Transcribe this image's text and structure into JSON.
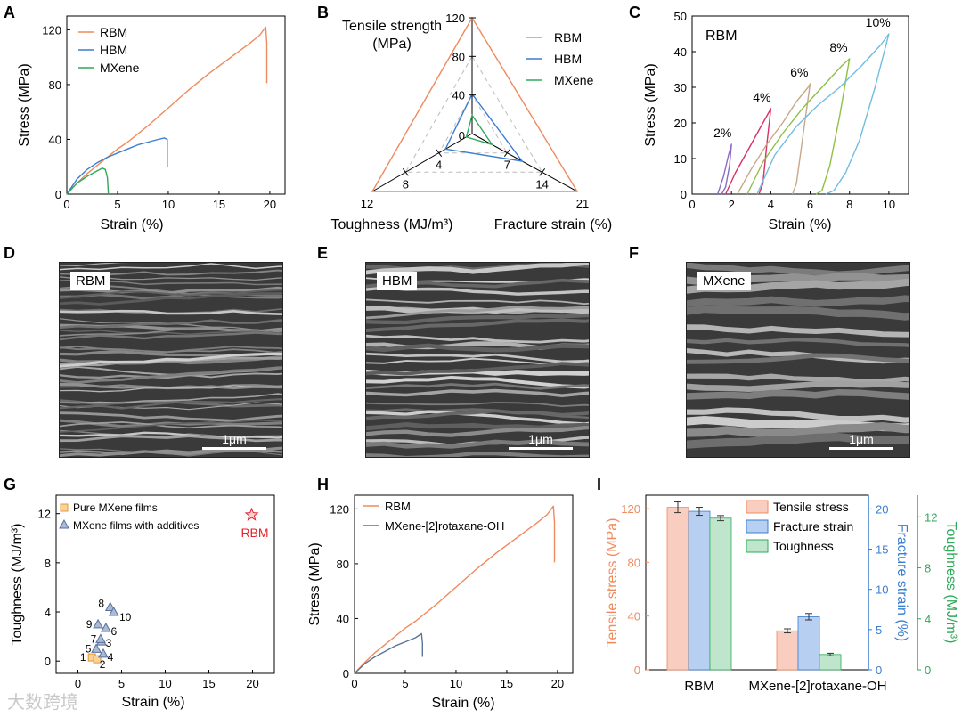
{
  "panels": {
    "A": {
      "letter": "A",
      "xlabel": "Strain (%)",
      "ylabel": "Stress (MPa)",
      "xticks": [
        "0",
        "5",
        "10",
        "15",
        "20"
      ],
      "yticks": [
        "0",
        "40",
        "80",
        "120"
      ],
      "legend": [
        "RBM",
        "HBM",
        "MXene"
      ]
    },
    "B": {
      "letter": "B",
      "axis_labels": {
        "top_1": "Tensile strength",
        "top_2": "(MPa)",
        "left": "Toughness (MJ/m³)",
        "right": "Fracture strain (%)"
      },
      "top_ticks": [
        "120",
        "80",
        "40",
        "0"
      ],
      "left_ticks": [
        "12",
        "8",
        "4"
      ],
      "right_ticks": [
        "21",
        "14",
        "7"
      ],
      "legend": [
        "RBM",
        "HBM",
        "MXene"
      ]
    },
    "C": {
      "letter": "C",
      "xlabel": "Strain (%)",
      "ylabel": "Stress (MPa)",
      "inset": "RBM",
      "xticks": [
        "0",
        "2",
        "4",
        "6",
        "8",
        "10"
      ],
      "yticks": [
        "0",
        "10",
        "20",
        "30",
        "40",
        "50"
      ],
      "cycle_labels": [
        "2%",
        "4%",
        "6%",
        "8%",
        "10%"
      ]
    },
    "D": {
      "letter": "D",
      "label": "RBM",
      "scale": "1μm"
    },
    "E": {
      "letter": "E",
      "label": "HBM",
      "scale": "1μm"
    },
    "F": {
      "letter": "F",
      "label": "MXene",
      "scale": "1μm"
    },
    "G": {
      "letter": "G",
      "xlabel": "Strain (%)",
      "ylabel": "Toughness (MJ/m³)",
      "xticks": [
        "0",
        "5",
        "10",
        "15",
        "20"
      ],
      "yticks": [
        "0",
        "4",
        "8",
        "12"
      ],
      "legend": [
        "Pure MXene films",
        "MXene films with additives"
      ],
      "star_label": "RBM"
    },
    "H": {
      "letter": "H",
      "xlabel": "Strain (%)",
      "ylabel": "Stress (MPa)",
      "xticks": [
        "0",
        "5",
        "10",
        "15",
        "20"
      ],
      "yticks": [
        "0",
        "40",
        "80",
        "120"
      ],
      "legend": [
        "RBM",
        "MXene-[2]rotaxane-OH"
      ]
    },
    "I": {
      "letter": "I",
      "ylabel_left": "Tensile stress (MPa)",
      "ylabel_mid": "Fracture strain (%)",
      "ylabel_right": "Toughness (MJ/m³)",
      "left_ticks": [
        "0",
        "40",
        "80",
        "120"
      ],
      "mid_ticks": [
        "0",
        "5",
        "10",
        "15",
        "20"
      ],
      "right_ticks": [
        "0",
        "4",
        "8",
        "12"
      ],
      "legend": [
        "Tensile stress",
        "Fracture strain",
        "Toughness"
      ],
      "categories": [
        "RBM",
        "MXene-[2]rotaxane-OH"
      ]
    }
  },
  "colors": {
    "rbm": "#f08a5d",
    "hbm": "#3a7dd1",
    "mxene": "#2eaa5a",
    "rotaxane": "#5b7594",
    "red": "#e0252f"
  },
  "watermark": "大数跨境",
  "chart_data": [
    {
      "panel": "A",
      "type": "line",
      "xlabel": "Strain (%)",
      "ylabel": "Stress (MPa)",
      "xlim": [
        0,
        21.5
      ],
      "ylim": [
        0,
        130
      ],
      "series": [
        {
          "name": "RBM",
          "x": [
            0,
            1,
            2,
            3,
            4,
            5,
            6,
            8,
            10,
            12,
            14,
            16,
            18,
            19,
            19.6,
            19.7,
            19.7
          ],
          "y": [
            0,
            8,
            15,
            21,
            27,
            33,
            38,
            50,
            63,
            76,
            88,
            99,
            110,
            116,
            122,
            110,
            81
          ]
        },
        {
          "name": "HBM",
          "x": [
            0,
            1,
            2,
            3,
            4,
            5,
            6,
            7,
            8,
            9,
            9.6,
            9.9,
            9.9
          ],
          "y": [
            0,
            11,
            18,
            23,
            27,
            30,
            33,
            36,
            38,
            40,
            41,
            40,
            20
          ]
        },
        {
          "name": "MXene",
          "x": [
            0,
            1,
            2,
            3,
            3.5,
            3.8,
            4.0,
            4.1
          ],
          "y": [
            0,
            8,
            13,
            17,
            19,
            18,
            12,
            0
          ]
        }
      ]
    },
    {
      "panel": "B",
      "type": "radar",
      "axes": [
        {
          "name": "Tensile strength (MPa)",
          "max": 120
        },
        {
          "name": "Toughness (MJ/m³)",
          "max": 12
        },
        {
          "name": "Fracture strain (%)",
          "max": 21
        }
      ],
      "series": [
        {
          "name": "RBM",
          "values": [
            120,
            12,
            21
          ]
        },
        {
          "name": "HBM",
          "values": [
            41,
            3.2,
            10
          ]
        },
        {
          "name": "MXene",
          "values": [
            19,
            0.7,
            4
          ]
        }
      ]
    },
    {
      "panel": "C",
      "type": "line",
      "xlabel": "Strain (%)",
      "ylabel": "Stress (MPa)",
      "xlim": [
        0,
        11
      ],
      "ylim": [
        0,
        50
      ],
      "series": [
        {
          "name": "2%",
          "color": "#8a6cc0",
          "x": [
            1.3,
            1.6,
            1.85,
            2.0,
            1.9,
            1.7,
            1.5
          ],
          "y": [
            0,
            5,
            11,
            14,
            8,
            2,
            0
          ]
        },
        {
          "name": "4%",
          "color": "#d8306a",
          "x": [
            1.7,
            2.2,
            2.8,
            3.4,
            3.9,
            4.0,
            3.8,
            3.6,
            3.4
          ],
          "y": [
            0,
            6,
            12,
            18,
            23,
            24,
            14,
            3,
            0
          ]
        },
        {
          "name": "6%",
          "color": "#c8a888",
          "x": [
            2.3,
            3.0,
            3.8,
            4.6,
            5.3,
            5.9,
            6.0,
            5.6,
            5.3,
            5.1
          ],
          "y": [
            0,
            7,
            14,
            20,
            26,
            30,
            31,
            15,
            3,
            0
          ]
        },
        {
          "name": "8%",
          "color": "#8ec045",
          "x": [
            2.8,
            3.6,
            4.6,
            5.6,
            6.6,
            7.6,
            8.0,
            7.5,
            7.0,
            6.6,
            6.3
          ],
          "y": [
            0,
            9,
            17,
            24,
            30,
            36,
            38,
            22,
            8,
            1,
            0
          ]
        },
        {
          "name": "10%",
          "color": "#6fbde0",
          "x": [
            3.3,
            4.2,
            5.3,
            6.4,
            7.5,
            8.6,
            9.6,
            10.0,
            9.3,
            8.5,
            7.8,
            7.2,
            6.8
          ],
          "y": [
            0,
            11,
            19,
            25,
            30,
            36,
            42,
            45,
            30,
            15,
            6,
            1,
            0
          ]
        }
      ]
    },
    {
      "panel": "G",
      "type": "scatter",
      "xlabel": "Strain (%)",
      "ylabel": "Toughness (MJ/m³)",
      "xlim": [
        -2.5,
        22.5
      ],
      "ylim": [
        -1,
        13.5
      ],
      "series": [
        {
          "name": "Pure MXene films",
          "points": [
            {
              "x": 1.6,
              "y": 0.3,
              "label": "1"
            },
            {
              "x": 2.2,
              "y": 0.15,
              "label": "2"
            }
          ]
        },
        {
          "name": "MXene films with additives",
          "points": [
            {
              "x": 2.1,
              "y": 1.0,
              "label": "5"
            },
            {
              "x": 2.9,
              "y": 0.6,
              "label": "4"
            },
            {
              "x": 2.7,
              "y": 1.6,
              "label": "3"
            },
            {
              "x": 2.6,
              "y": 1.8,
              "label": "7"
            },
            {
              "x": 3.2,
              "y": 2.7,
              "label": "6"
            },
            {
              "x": 2.3,
              "y": 3.0,
              "label": "9"
            },
            {
              "x": 3.7,
              "y": 4.4,
              "label": "8"
            },
            {
              "x": 4.1,
              "y": 4.0,
              "label": "10"
            }
          ]
        },
        {
          "name": "RBM",
          "points": [
            {
              "x": 19.9,
              "y": 11.9
            }
          ]
        }
      ]
    },
    {
      "panel": "H",
      "type": "line",
      "xlabel": "Strain (%)",
      "ylabel": "Stress (MPa)",
      "xlim": [
        0,
        21.5
      ],
      "ylim": [
        0,
        130
      ],
      "series": [
        {
          "name": "RBM",
          "x": [
            0,
            1,
            2,
            3,
            4,
            5,
            6,
            8,
            10,
            12,
            14,
            16,
            18,
            19,
            19.6,
            19.7,
            19.7
          ],
          "y": [
            0,
            8,
            15,
            21,
            27,
            33,
            38,
            50,
            63,
            76,
            88,
            99,
            110,
            116,
            122,
            110,
            81
          ]
        },
        {
          "name": "MXene-[2]rotaxane-OH",
          "x": [
            0,
            1,
            2,
            3,
            4,
            5,
            6,
            6.6,
            6.7,
            6.7
          ],
          "y": [
            0,
            7,
            12,
            16,
            20,
            23,
            26,
            29,
            22,
            12
          ]
        }
      ]
    },
    {
      "panel": "I",
      "type": "bar",
      "categories": [
        "RBM",
        "MXene-[2]rotaxane-OH"
      ],
      "series": [
        {
          "name": "Tensile stress",
          "axis": "Tensile stress (MPa)",
          "values": [
            121,
            29
          ],
          "errors": [
            4,
            1.5
          ]
        },
        {
          "name": "Fracture strain",
          "axis": "Fracture strain (%)",
          "values": [
            19.7,
            6.6
          ],
          "errors": [
            0.5,
            0.4
          ]
        },
        {
          "name": "Toughness",
          "axis": "Toughness (MJ/m³)",
          "values": [
            11.9,
            1.2
          ],
          "errors": [
            0.2,
            0.1
          ]
        }
      ]
    }
  ]
}
